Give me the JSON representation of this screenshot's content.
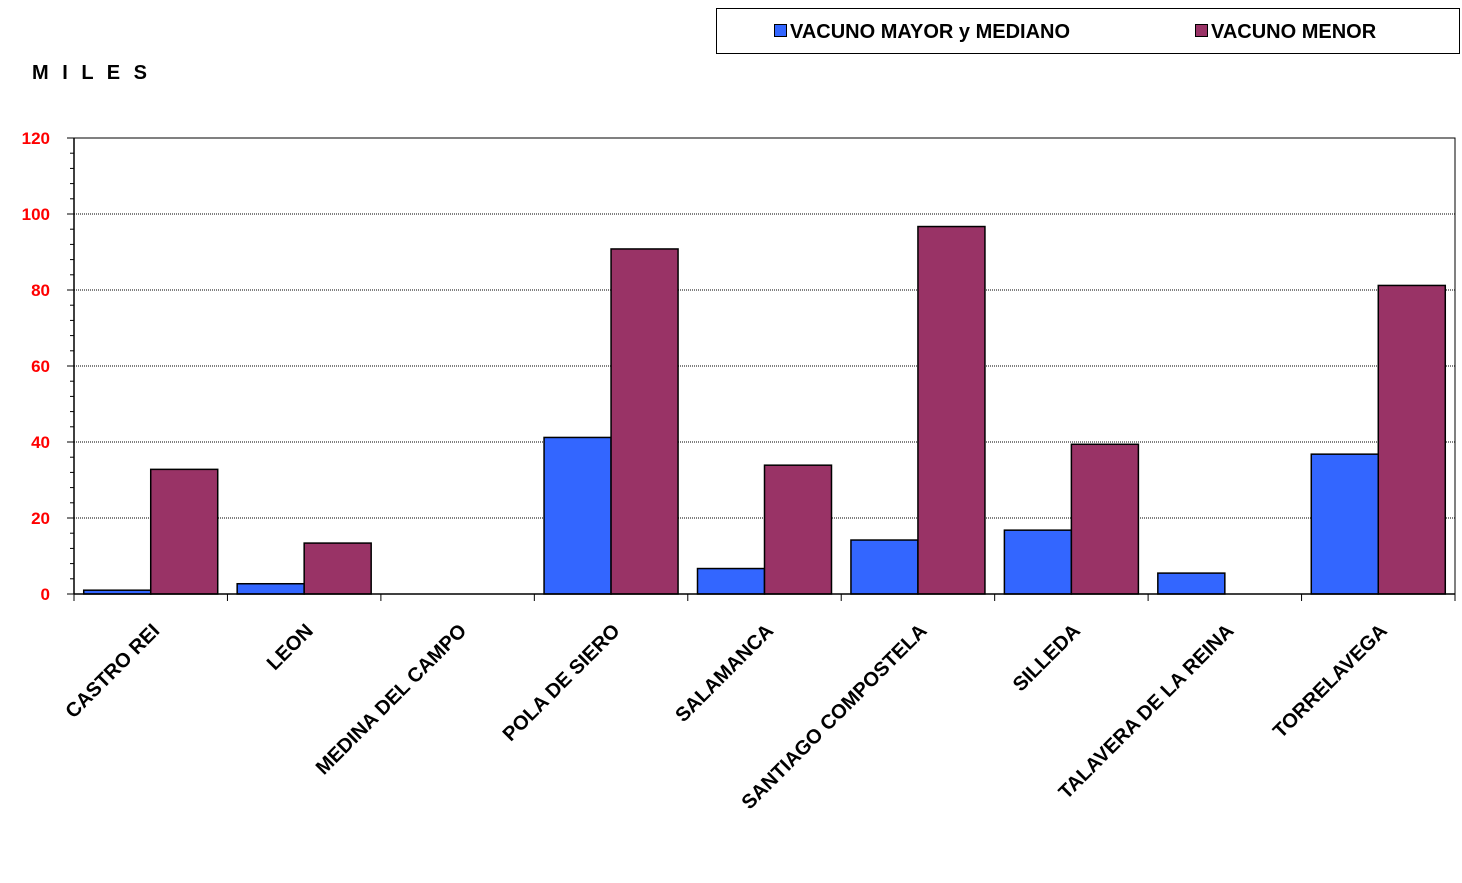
{
  "chart_data": {
    "type": "bar",
    "units_label": "M I L E S",
    "categories": [
      "CASTRO REI",
      "LEON",
      "MEDINA DEL CAMPO",
      "POLA DE SIERO",
      "SALAMANCA",
      "SANTIAGO COMPOSTELA",
      "SILLEDA",
      "TALAVERA DE LA REINA",
      "TORRELAVEGA"
    ],
    "series": [
      {
        "name": "VACUNO MAYOR y MEDIANO",
        "color": "#3366ff",
        "values": [
          1,
          2.7,
          0,
          41.2,
          6.7,
          14.2,
          16.8,
          5.5,
          36.8
        ]
      },
      {
        "name": "VACUNO MENOR",
        "color": "#993366",
        "values": [
          32.8,
          13.4,
          0,
          90.8,
          33.9,
          96.7,
          39.4,
          0,
          81.2
        ]
      }
    ],
    "yticks": [
      "0",
      "20",
      "40",
      "60",
      "80",
      "100",
      "120"
    ],
    "ylim": [
      0,
      120
    ],
    "grid": true,
    "legend_position": "top-right"
  }
}
